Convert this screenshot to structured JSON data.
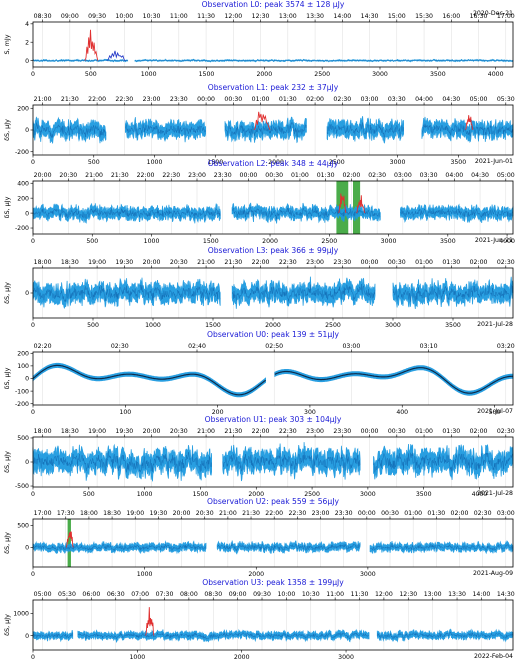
{
  "chart_data": [
    {
      "type": "line",
      "title": "Observation L0: peak 3574 ± 128 μJy",
      "date": "2020-Dec-21",
      "ylabel": "S, mJy",
      "xlim": [
        0,
        4150
      ],
      "ylim": [
        -0.7,
        4.2
      ],
      "x_ticks": [
        0,
        500,
        1000,
        1500,
        2000,
        2500,
        3000,
        3500,
        4000
      ],
      "y_ticks": [
        0,
        2,
        4
      ],
      "time_ticks": [
        "08:30",
        "09:00",
        "09:30",
        "10:00",
        "10:30",
        "11:00",
        "11:30",
        "12:00",
        "12:30",
        "13:00",
        "13:30",
        "14:00",
        "14:30",
        "15:00",
        "15:30",
        "16:00",
        "16:30",
        "17:00"
      ],
      "segments": [
        [
          0,
          820
        ],
        [
          880,
          4150
        ]
      ],
      "noise": 0.08,
      "bands": [],
      "flares": [
        {
          "x": [
            450,
            560
          ],
          "peak": 3.6,
          "color": "#e03030"
        },
        {
          "x": [
            640,
            800
          ],
          "peak": 1.2,
          "color": "#283cc8"
        }
      ]
    },
    {
      "type": "line",
      "title": "Observation L1: peak 232 ± 37μJy",
      "date": "2021-Jun-01",
      "ylabel": "δS, μJy",
      "xlim": [
        0,
        3950
      ],
      "ylim": [
        -230,
        230
      ],
      "x_ticks": [
        0,
        500,
        1000,
        1500,
        2000,
        2500,
        3000,
        3500
      ],
      "y_ticks": [
        -200,
        0,
        200
      ],
      "time_ticks": [
        "21:00",
        "21:30",
        "22:00",
        "22:30",
        "23:00",
        "23:30",
        "00:00",
        "00:30",
        "01:00",
        "01:30",
        "02:00",
        "02:30",
        "03:00",
        "03:30",
        "04:00",
        "04:30",
        "05:00",
        "05:30"
      ],
      "segments": [
        [
          0,
          600
        ],
        [
          760,
          1420
        ],
        [
          1580,
          2250
        ],
        [
          2420,
          3050
        ],
        [
          3200,
          3950
        ]
      ],
      "noise": 55,
      "bands": [],
      "flares": [
        {
          "x": [
            1820,
            1950
          ],
          "peak": 232,
          "color": "#e03030"
        },
        {
          "x": [
            3560,
            3620
          ],
          "peak": 180,
          "color": "#e03030"
        }
      ]
    },
    {
      "type": "line",
      "title": "Observation L2: peak 348 ± 44μJy",
      "date": "2021-Jun-21",
      "ylabel": "δS, μJy",
      "xlim": [
        0,
        4050
      ],
      "ylim": [
        -280,
        430
      ],
      "x_ticks": [
        0,
        500,
        1000,
        1500,
        2000,
        2500,
        3000,
        3500,
        4000
      ],
      "y_ticks": [
        -200,
        0,
        200,
        400
      ],
      "time_ticks": [
        "20:00",
        "20:30",
        "21:00",
        "21:30",
        "22:00",
        "22:30",
        "23:00",
        "23:30",
        "00:00",
        "00:30",
        "01:00",
        "01:30",
        "02:00",
        "02:30",
        "03:00",
        "03:30",
        "04:00",
        "04:30",
        "05:00"
      ],
      "segments": [
        [
          0,
          1580
        ],
        [
          1680,
          2930
        ],
        [
          3100,
          4050
        ]
      ],
      "noise": 60,
      "bands": [
        [
          2560,
          2660
        ],
        [
          2700,
          2760
        ]
      ],
      "flares": [
        {
          "x": [
            2580,
            2640
          ],
          "peak": 348,
          "color": "#e03030"
        },
        {
          "x": [
            2730,
            2800
          ],
          "peak": 250,
          "color": "#e03030"
        }
      ]
    },
    {
      "type": "line",
      "title": "Observation L3: peak 366 ± 99μJy",
      "date": "2021-Jul-28",
      "ylabel": "δS, μJy",
      "xlim": [
        0,
        4000
      ],
      "ylim": [
        -330,
        330
      ],
      "x_ticks": [
        0,
        500,
        1000,
        1500,
        2000,
        2500,
        3000,
        3500
      ],
      "y_ticks": [
        0
      ],
      "time_ticks": [
        "18:00",
        "18:30",
        "19:00",
        "19:30",
        "20:00",
        "20:30",
        "21:00",
        "21:30",
        "22:00",
        "22:30",
        "23:00",
        "23:30",
        "00:00",
        "00:30",
        "01:00",
        "01:30",
        "02:00",
        "02:30"
      ],
      "segments": [
        [
          0,
          1560
        ],
        [
          1660,
          2850
        ],
        [
          3000,
          4000
        ]
      ],
      "noise": 90,
      "bands": [],
      "flares": []
    },
    {
      "type": "line",
      "title": "Observation U0: peak 139 ± 51μJy",
      "date": "2021-Jul-07",
      "ylabel": "δS, μJy",
      "xlim": [
        0,
        520
      ],
      "ylim": [
        -210,
        210
      ],
      "x_ticks": [
        0,
        100,
        200,
        300,
        400,
        500
      ],
      "y_ticks": [
        -200,
        -100,
        0,
        100,
        200
      ],
      "time_ticks": [
        "02:20",
        "02:30",
        "02:40",
        "02:50",
        "03:00",
        "03:10",
        "03:20"
      ],
      "segments": [
        [
          0,
          252
        ],
        [
          262,
          520
        ]
      ],
      "noise": 14,
      "bands": [],
      "flares": []
    },
    {
      "type": "line",
      "title": "Observation U1: peak 303 ± 104μJy",
      "date": "2021-Jul-28",
      "ylabel": "δS, μJy",
      "xlim": [
        0,
        4300
      ],
      "ylim": [
        -520,
        520
      ],
      "x_ticks": [
        0,
        500,
        1000,
        1500,
        2000,
        2500,
        3000,
        3500,
        4000
      ],
      "y_ticks": [
        -500,
        0,
        500
      ],
      "time_ticks": [
        "18:00",
        "18:30",
        "19:00",
        "19:30",
        "20:00",
        "20:30",
        "21:00",
        "21:30",
        "22:00",
        "22:30",
        "23:00",
        "23:30",
        "00:00",
        "00:30",
        "01:00",
        "01:30",
        "02:00",
        "02:30"
      ],
      "segments": [
        [
          0,
          1600
        ],
        [
          1700,
          2930
        ],
        [
          3050,
          4300
        ]
      ],
      "noise": 170,
      "bands": [],
      "flares": []
    },
    {
      "type": "line",
      "title": "Observation U2: peak 559 ± 56μJy",
      "date": "2021-Aug-09",
      "ylabel": "δS, μJy",
      "xlim": [
        0,
        4300
      ],
      "ylim": [
        -450,
        650
      ],
      "x_ticks": [
        0,
        1000,
        2000,
        3000
      ],
      "y_ticks": [
        0,
        500
      ],
      "time_ticks": [
        "17:00",
        "17:30",
        "18:00",
        "18:30",
        "19:00",
        "19:30",
        "20:00",
        "20:30",
        "21:00",
        "21:30",
        "22:00",
        "22:30",
        "23:00",
        "23:30",
        "00:00",
        "00:30",
        "01:00",
        "01:30",
        "02:00",
        "02:30",
        "03:00"
      ],
      "segments": [
        [
          0,
          1550
        ],
        [
          1650,
          2930
        ],
        [
          3020,
          4300
        ]
      ],
      "noise": 65,
      "bands": [
        [
          310,
          340
        ]
      ],
      "flares": [
        {
          "x": [
            300,
            360
          ],
          "peak": 559,
          "color": "#e03030"
        }
      ]
    },
    {
      "type": "line",
      "title": "Observation U3: peak 1358 ± 199μJy",
      "date": "2022-Feb-04",
      "ylabel": "δS, μJy",
      "xlim": [
        0,
        4600
      ],
      "ylim": [
        -650,
        1600
      ],
      "x_ticks": [
        0,
        1000,
        2000,
        3000
      ],
      "y_ticks": [
        0,
        1000
      ],
      "time_ticks": [
        "05:00",
        "05:30",
        "06:00",
        "06:30",
        "07:00",
        "07:30",
        "08:00",
        "08:30",
        "09:00",
        "09:30",
        "10:00",
        "10:30",
        "11:00",
        "11:30",
        "12:00",
        "12:30",
        "13:00",
        "13:30",
        "14:00",
        "14:30"
      ],
      "segments": [
        [
          0,
          380
        ],
        [
          430,
          3220
        ],
        [
          3300,
          4600
        ]
      ],
      "noise": 120,
      "bands": [],
      "flares": [
        {
          "x": [
            1080,
            1160
          ],
          "peak": 1358,
          "color": "#e03030"
        }
      ]
    }
  ]
}
